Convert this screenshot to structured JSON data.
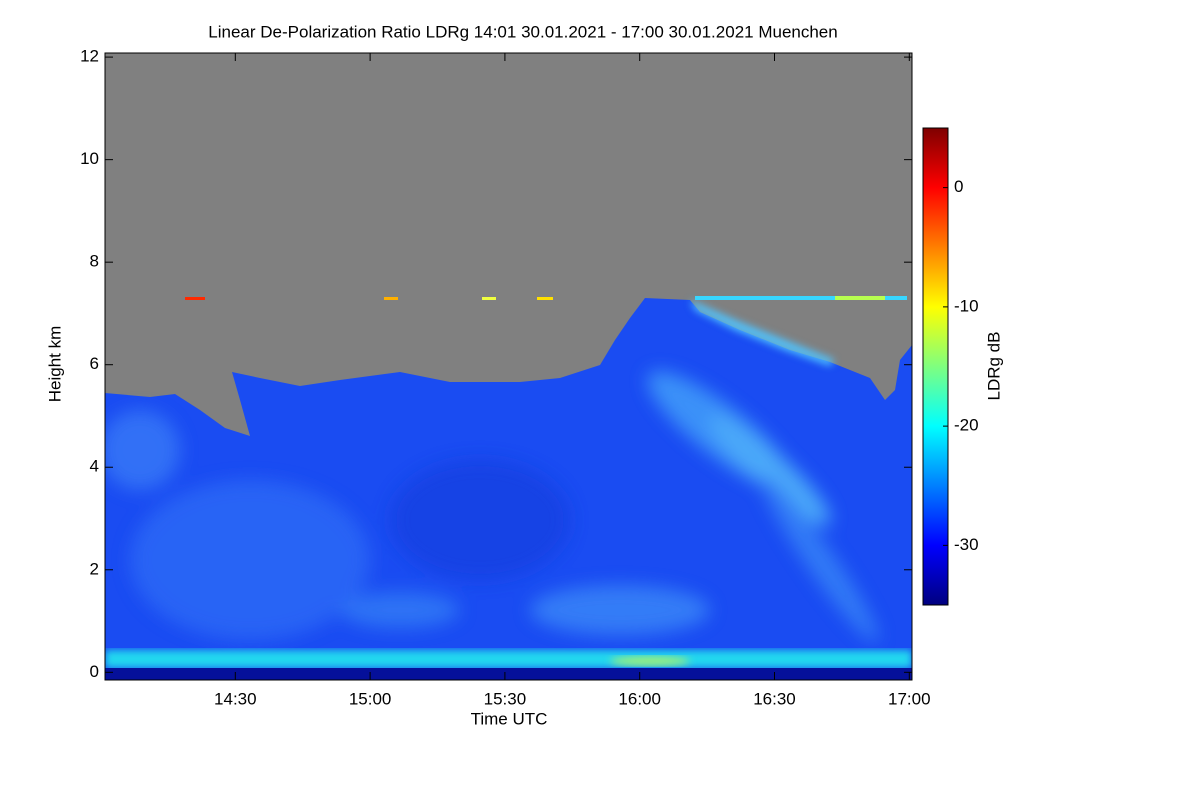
{
  "chart_data": {
    "type": "heatmap",
    "title": "Linear De-Polarization Ratio LDRg   14:01 30.01.2021 - 17:00 30.01.2021 Muenchen",
    "x_label": "Time UTC",
    "y_label": "Height km",
    "colorbar_label": "LDRg dB",
    "xlim": [
      841,
      1020.6
    ],
    "xticks": [
      {
        "value": 870,
        "label": "14:30"
      },
      {
        "value": 900,
        "label": "15:00"
      },
      {
        "value": 930,
        "label": "15:30"
      },
      {
        "value": 960,
        "label": "16:00"
      },
      {
        "value": 990,
        "label": "16:30"
      },
      {
        "value": 1020,
        "label": "17:00"
      }
    ],
    "ylim": [
      -0.15,
      12.08
    ],
    "yticks": [
      0,
      2,
      4,
      6,
      8,
      10,
      12
    ],
    "clim": [
      -35,
      5
    ],
    "cticks": [
      -30,
      -20,
      -10,
      0
    ],
    "colormap": [
      "#00007f",
      "#0000ff",
      "#007fff",
      "#00ffff",
      "#7fff7f",
      "#ffff00",
      "#ff7f00",
      "#ff0000",
      "#7f0000"
    ]
  }
}
